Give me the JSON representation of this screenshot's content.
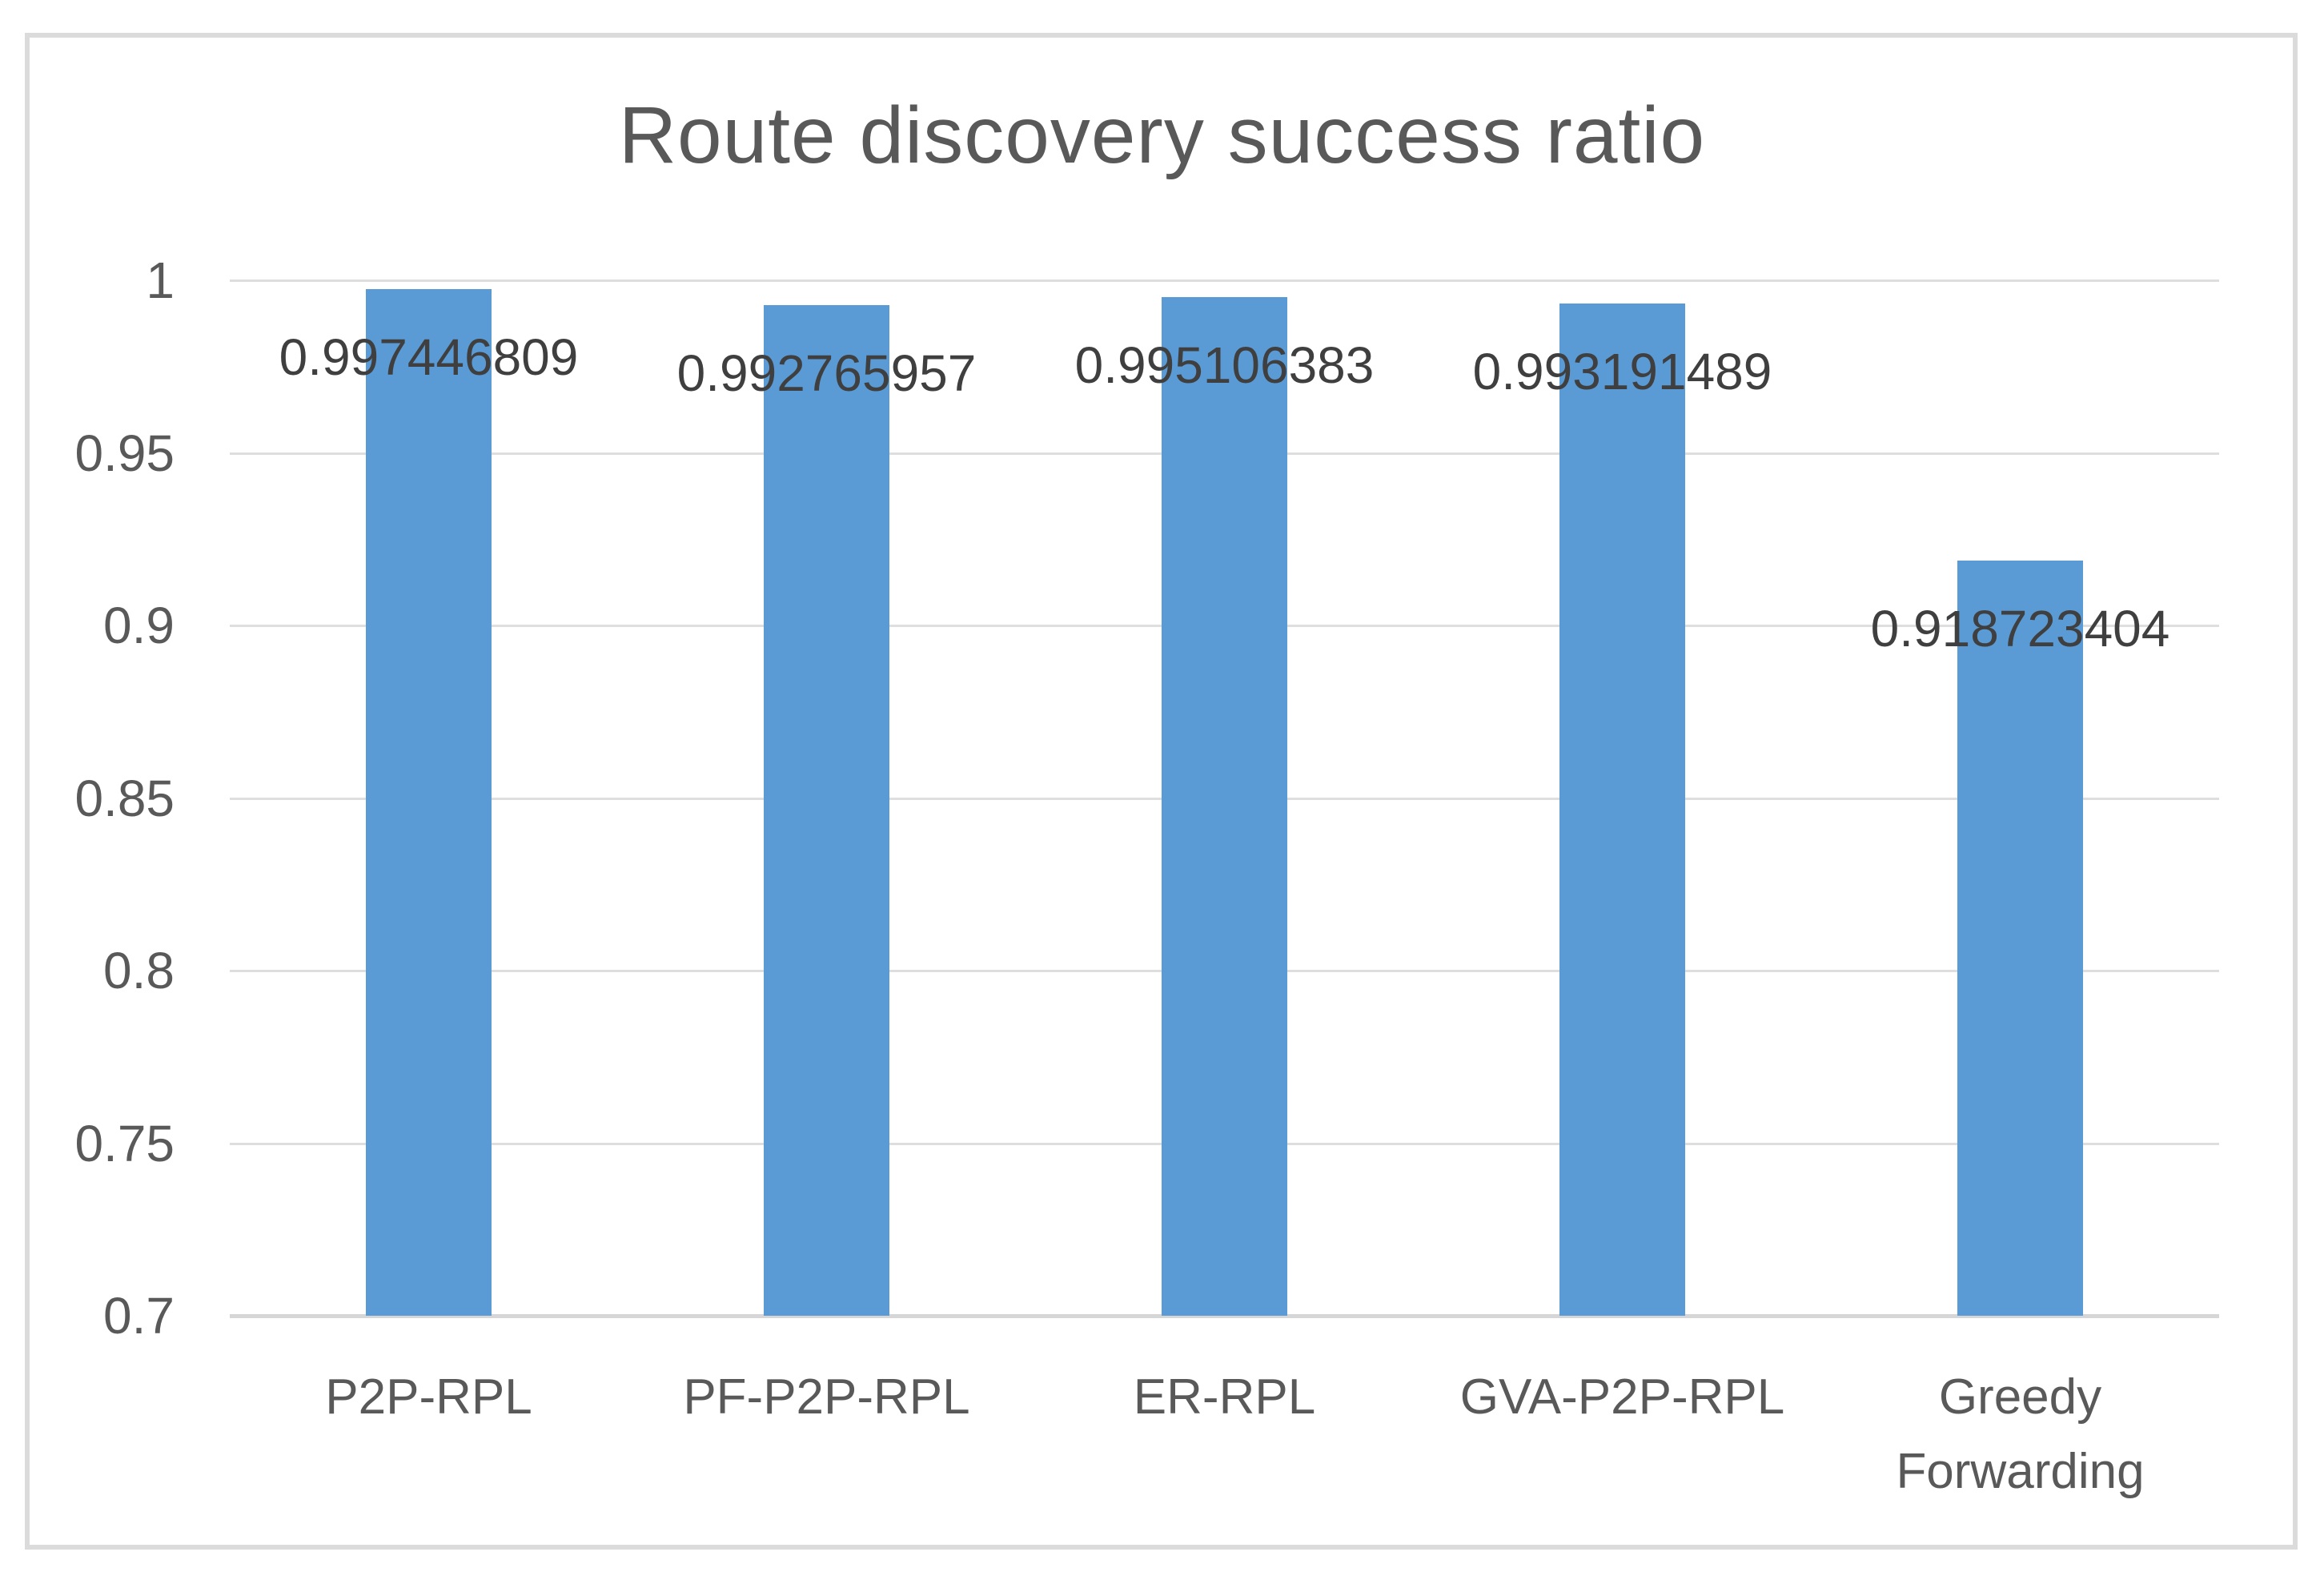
{
  "page": {
    "background": "#FFFFFF",
    "border_color": "#DBDBDB"
  },
  "chart_data": {
    "type": "bar",
    "title": "Route discovery success ratio",
    "categories": [
      "P2P-RPL",
      "PF-P2P-RPL",
      "ER-RPL",
      "GVA-P2P-RPL",
      "Greedy Forwarding"
    ],
    "values": [
      0.997446809,
      0.992765957,
      0.995106383,
      0.993191489,
      0.918723404
    ],
    "data_labels": [
      "0.997446809",
      "0.992765957",
      "0.995106383",
      "0.993191489",
      "0.918723404"
    ],
    "xlabel": "",
    "ylabel": "",
    "ylim": [
      0.7,
      1.0
    ],
    "ytick_values": [
      1,
      0.95,
      0.9,
      0.85,
      0.8,
      0.75,
      0.7
    ],
    "ytick_labels": [
      "1",
      "0.95",
      "0.9",
      "0.85",
      "0.8",
      "0.75",
      "0.7"
    ],
    "grid": "horizontal",
    "legend": "none",
    "colors": {
      "bar": "#5B9BD5",
      "title": "#595959",
      "axis_labels": "#595959",
      "data_labels": "#3F3F3F",
      "gridline": "#DEDEDE",
      "axis_line": "#D6D6D6"
    }
  }
}
